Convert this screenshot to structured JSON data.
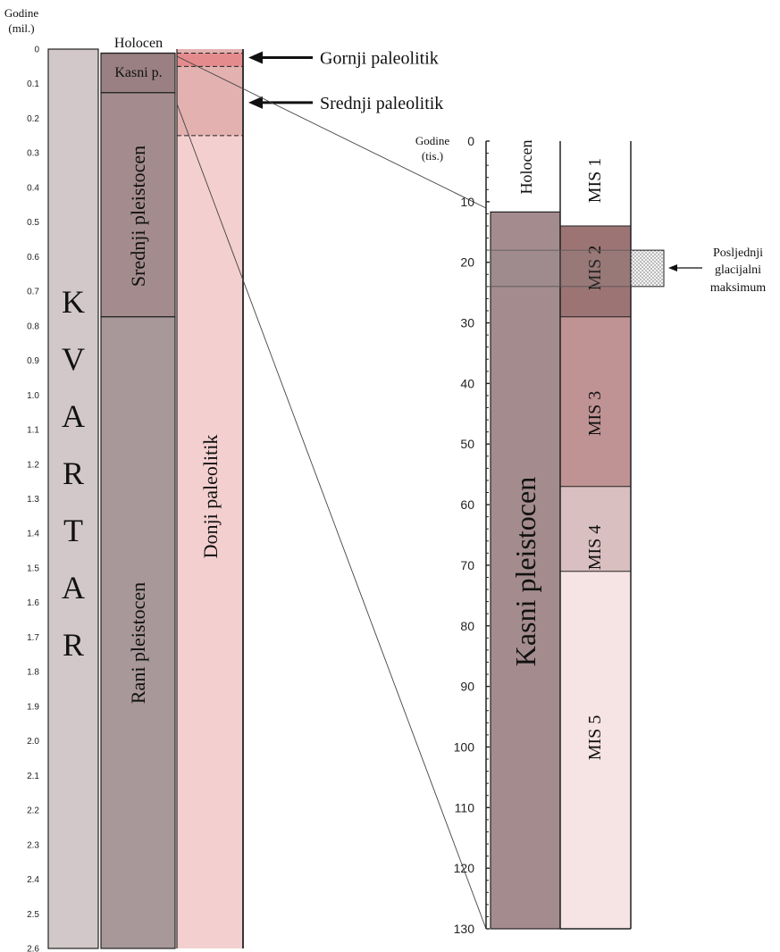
{
  "left_axis": {
    "title_line1": "Godine",
    "title_line2": "(mil.)",
    "ticks": [
      "0",
      "0.1",
      "0.2",
      "0.3",
      "0.4",
      "0.5",
      "0.6",
      "0.7",
      "0.8",
      "0.9",
      "1.0",
      "1.1",
      "1.2",
      "1.3",
      "1.4",
      "1.5",
      "1.6",
      "1.7",
      "1.8",
      "1.9",
      "2.0",
      "2.1",
      "2.2",
      "2.3",
      "2.4",
      "2.5",
      "2.6"
    ],
    "range": [
      0,
      2.6
    ]
  },
  "kvartar": {
    "label": "KVARTAR",
    "start": 0,
    "end": 2.6,
    "color": "#d2c8c9"
  },
  "epochs": [
    {
      "label": "Holocen",
      "start": 0,
      "end": 0.0117,
      "color": "#ffffff"
    },
    {
      "label": "Kasni p.",
      "start": 0.0117,
      "end": 0.126,
      "color": "#9a8082"
    },
    {
      "label": "Srednji pleistocen",
      "start": 0.126,
      "end": 0.774,
      "color": "#a48c8e"
    },
    {
      "label": "Rani pleistocen",
      "start": 0.774,
      "end": 2.58,
      "color": "#a8989a"
    }
  ],
  "paleolithic": {
    "lower_label": "Donji paleolitik",
    "lower_color": "#f4cfcf",
    "middle_color": "#e2b1b0",
    "upper_color": "#e48b8e",
    "upper_start": 0.0117,
    "upper_end": 0.05,
    "middle_end": 0.25
  },
  "callouts": [
    {
      "label": "Gornji paleolitik",
      "value": 0.04
    },
    {
      "label": "Srednji paleolitik",
      "value": 0.17
    }
  ],
  "right_axis": {
    "title_line1": "Godine",
    "title_line2": "(tis.)",
    "ticks": [
      "0",
      "10",
      "20",
      "30",
      "40",
      "50",
      "60",
      "70",
      "80",
      "90",
      "100",
      "110",
      "120",
      "130"
    ],
    "range": [
      0,
      130
    ]
  },
  "right_epochs": {
    "holocene_label": "Holocen",
    "holocene_end": 11.7,
    "late_label": "Kasni pleistocen",
    "late_color": "#a48c8e"
  },
  "mis": [
    {
      "label": "MIS 1",
      "start": 0,
      "end": 14,
      "color": "#ffffff"
    },
    {
      "label": "MIS 2",
      "start": 14,
      "end": 29,
      "color": "#9d7474"
    },
    {
      "label": "MIS 3",
      "start": 29,
      "end": 57,
      "color": "#bf9293"
    },
    {
      "label": "MIS 4",
      "start": 57,
      "end": 71,
      "color": "#d9bfbf"
    },
    {
      "label": "MIS 5",
      "start": 71,
      "end": 130,
      "color": "#f6e3e3"
    }
  ],
  "lgm": {
    "line1": "Posljednji",
    "line2": "glacijalni",
    "line3": "maksimum",
    "start": 18,
    "end": 24
  }
}
